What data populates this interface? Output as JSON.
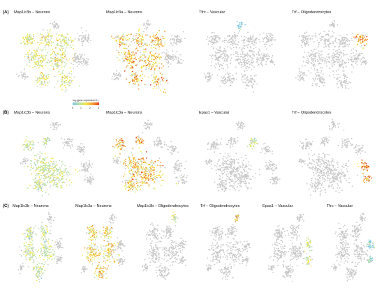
{
  "figure": {
    "rows": [
      {
        "label": "(A)",
        "panels": [
          {
            "title": "Map1lc3b – Neurons",
            "layout": "a",
            "expr": "neurons",
            "level": 0.45
          },
          {
            "title": "Map1lc3a – Neurons",
            "layout": "a",
            "expr": "neurons",
            "level": 0.7
          },
          {
            "title": "Tfrc – Vascular",
            "layout": "a",
            "expr": "top-cluster",
            "level": 0.05
          },
          {
            "title": "Trf – Oligodendrocytes",
            "layout": "a",
            "expr": "right-cluster",
            "level": 0.85
          }
        ]
      },
      {
        "label": "(B)",
        "panels": [
          {
            "title": "Map1lc3b – Neurons",
            "layout": "b",
            "expr": "neurons",
            "level": 0.35
          },
          {
            "title": "Map1lc3a – Neurons",
            "layout": "b",
            "expr": "neurons",
            "level": 0.7
          },
          {
            "title": "Epas1 – Vascular",
            "layout": "b",
            "expr": "mid-cluster",
            "level": 0.35
          },
          {
            "title": "Trf – Oligodendrocytes",
            "layout": "b",
            "expr": "right-cluster",
            "level": 0.9
          }
        ]
      },
      {
        "label": "(C)",
        "panels": [
          {
            "title": "Map1lc3b – Neurons",
            "layout": "c",
            "expr": "neurons",
            "level": 0.35
          },
          {
            "title": "Map1lc3a – Neurons",
            "layout": "c",
            "expr": "neurons",
            "level": 0.6
          },
          {
            "title": "Map1lc3b – Oligodendrocytes",
            "layout": "c",
            "expr": "top-cluster",
            "level": 0.4
          },
          {
            "title": "Trf – Oligodendrocytes",
            "layout": "c",
            "expr": "top-cluster",
            "level": 0.75
          },
          {
            "title": "Epas1 – Vascular",
            "layout": "c",
            "expr": "right-cluster",
            "level": 0.4
          },
          {
            "title": "Tfrc – Vascular",
            "layout": "c",
            "expr": "right-cluster",
            "level": 0.1
          }
        ]
      }
    ],
    "legend": {
      "title": "log₂(gene expression+1)",
      "ticks": [
        "0",
        "1",
        "2",
        "3"
      ],
      "colors": [
        "#7ec8e3",
        "#b8e0a8",
        "#f2e64a",
        "#f7a134",
        "#e8431c"
      ]
    },
    "colors": {
      "unexpressed": "#c8c8c8"
    }
  }
}
